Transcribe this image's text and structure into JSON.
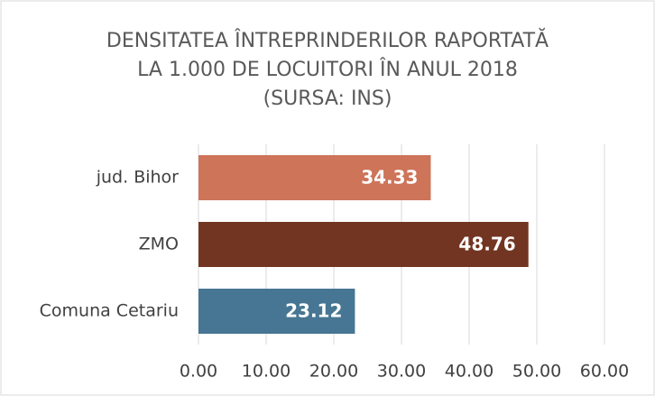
{
  "chart_data": {
    "type": "bar",
    "orientation": "horizontal",
    "title": "DENSITATEA ÎNTREPRINDERILOR RAPORTATĂ LA 1.000 DE LOCUITORI ÎN ANUL 2018 (SURSA: INS)",
    "categories": [
      "jud. Bihor",
      "ZMO",
      "Comuna Cetariu"
    ],
    "values": [
      34.33,
      48.76,
      23.12
    ],
    "colors": [
      "#cd7459",
      "#723521",
      "#467693"
    ],
    "xlim": [
      0,
      60
    ],
    "xticks": [
      {
        "value": 0,
        "label": "0.00"
      },
      {
        "value": 10,
        "label": "10.00"
      },
      {
        "value": 20,
        "label": "20.00"
      },
      {
        "value": 30,
        "label": "30.00"
      },
      {
        "value": 40,
        "label": "40.00"
      },
      {
        "value": 50,
        "label": "50.00"
      },
      {
        "value": 60,
        "label": "60.00"
      }
    ],
    "grid": true
  }
}
